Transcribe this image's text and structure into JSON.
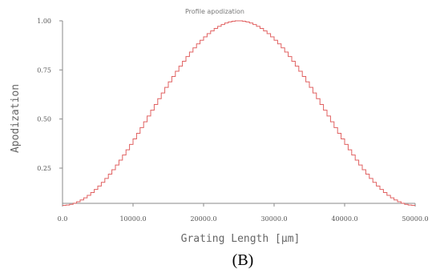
{
  "chart_data": {
    "type": "line",
    "title": "Profile apodization",
    "xlabel": "Grating Length [μm]",
    "ylabel": "Apodization",
    "xlim": [
      0,
      50000
    ],
    "ylim": [
      0.05,
      1.0
    ],
    "x_ticks": [
      0,
      10000,
      20000,
      30000,
      40000,
      50000
    ],
    "x_tick_labels": [
      "0.0",
      "10000.0",
      "20000.0",
      "30000.0",
      "40000.0",
      "50000.0"
    ],
    "y_ticks": [
      0.25,
      0.5,
      0.75,
      1.0
    ],
    "y_tick_labels": [
      "0.25",
      "0.50",
      "0.75",
      "1.00"
    ],
    "grid": false,
    "series": [
      {
        "color": "#e06060",
        "style": "staircase",
        "segments": 100,
        "shape": "raised-cosine",
        "peak_x": 25000,
        "peak_y": 1.0,
        "edge_y": 0.06
      }
    ]
  },
  "caption": "(B)"
}
